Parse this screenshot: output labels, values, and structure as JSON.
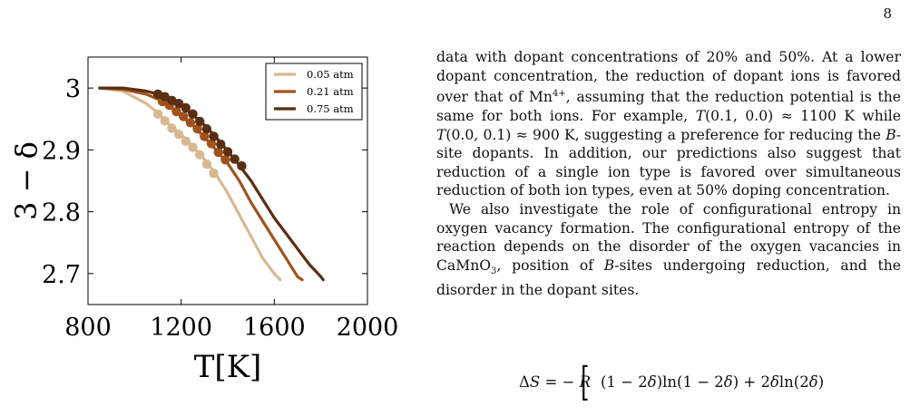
{
  "page_number": "8",
  "figure": {
    "chart_data": {
      "type": "line",
      "title": "",
      "xlabel": "T[K]",
      "ylabel": "3 − δ",
      "xlim": [
        800,
        2000
      ],
      "ylim": [
        2.65,
        3.05
      ],
      "xticks": [
        800,
        1200,
        1600,
        2000
      ],
      "yticks": [
        2.7,
        2.8,
        2.9,
        3.0
      ],
      "xtick_labels": [
        "800",
        "1200",
        "1600",
        "2000"
      ],
      "ytick_labels": [
        "2.7",
        "2.8",
        "2.9",
        "3"
      ],
      "grid": false,
      "legend_position": "top-right",
      "series": [
        {
          "name": "0.05 atm",
          "color": "#d8b98f",
          "x": [
            850,
            950,
            1050,
            1100,
            1150,
            1200,
            1250,
            1300,
            1350,
            1400,
            1450,
            1500,
            1550,
            1600,
            1625
          ],
          "y": [
            3.0,
            2.995,
            2.975,
            2.96,
            2.94,
            2.925,
            2.905,
            2.885,
            2.86,
            2.83,
            2.795,
            2.76,
            2.725,
            2.7,
            2.69
          ],
          "markers_x": [
            1100,
            1130,
            1160,
            1190,
            1220,
            1250,
            1280,
            1310,
            1340
          ],
          "markers_y": [
            2.958,
            2.947,
            2.935,
            2.925,
            2.914,
            2.904,
            2.892,
            2.877,
            2.862
          ]
        },
        {
          "name": "0.21 atm",
          "color": "#a0521c",
          "x": [
            850,
            950,
            1050,
            1100,
            1150,
            1200,
            1250,
            1300,
            1350,
            1400,
            1450,
            1500,
            1550,
            1600,
            1650,
            1700,
            1720
          ],
          "y": [
            3.0,
            2.998,
            2.99,
            2.982,
            2.97,
            2.955,
            2.94,
            2.92,
            2.9,
            2.878,
            2.85,
            2.815,
            2.785,
            2.755,
            2.725,
            2.695,
            2.69
          ],
          "markers_x": [
            1120,
            1150,
            1180,
            1210,
            1240,
            1270,
            1300,
            1330,
            1360,
            1390
          ],
          "markers_y": [
            2.978,
            2.972,
            2.962,
            2.954,
            2.944,
            2.934,
            2.922,
            2.91,
            2.896,
            2.884
          ]
        },
        {
          "name": "0.75 atm",
          "color": "#5a2e12",
          "x": [
            850,
            950,
            1050,
            1100,
            1150,
            1200,
            1250,
            1300,
            1350,
            1400,
            1450,
            1500,
            1550,
            1600,
            1650,
            1700,
            1750,
            1800,
            1810
          ],
          "y": [
            3.0,
            3.0,
            2.995,
            2.99,
            2.982,
            2.97,
            2.957,
            2.94,
            2.92,
            2.898,
            2.875,
            2.85,
            2.82,
            2.79,
            2.765,
            2.74,
            2.715,
            2.695,
            2.69
          ],
          "markers_x": [
            1100,
            1130,
            1160,
            1190,
            1220,
            1250,
            1280,
            1310,
            1340,
            1370,
            1400,
            1430,
            1460
          ],
          "markers_y": [
            2.99,
            2.986,
            2.98,
            2.975,
            2.968,
            2.958,
            2.946,
            2.934,
            2.922,
            2.909,
            2.897,
            2.885,
            2.874
          ]
        }
      ]
    }
  },
  "text": {
    "para1": "data with dopant concentrations of 20% and 50%. At a lower dopant concentration, the reduction of dopant ions is favored over that of Mn4+, assuming that the reduction potential is the same for both ions. For example, T(0.1, 0.0) ≈ 1100 K while T(0.0, 0.1) ≈ 900 K, suggesting a preference for reducing the B-site dopants. In addition, our predictions also suggest that reduction of a single ion type is favored over simultaneous reduction of both ion types, even at 50% doping concentration.",
    "para2": "We also investigate the role of configurational entropy in oxygen vacancy formation. The configurational entropy of the reaction depends on the disorder of the oxygen vacancies in CaMnO3, position of B-sites undergoing reduction, and the disorder in the dopant sites."
  },
  "equation": {
    "lhs": "ΔS = − R",
    "bracket": "[",
    "rhs": "(1 − 2δ)ln(1 − 2δ) + 2δln(2δ)"
  }
}
